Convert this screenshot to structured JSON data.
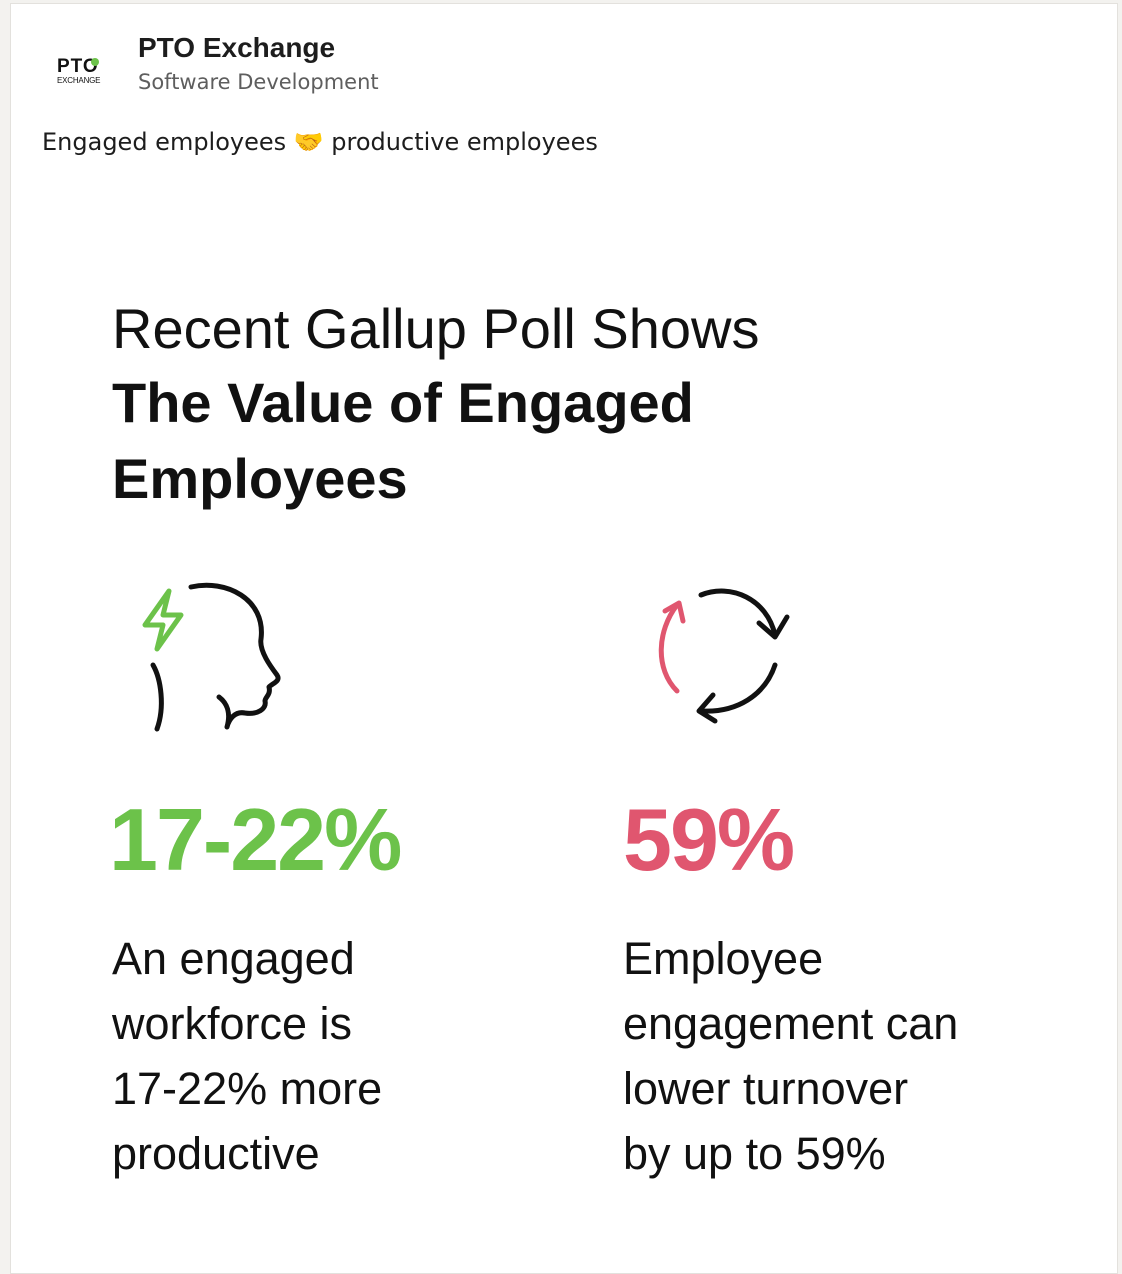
{
  "post": {
    "company_name": "PTO Exchange",
    "company_category": "Software Development",
    "logo": {
      "word": "PTO",
      "sub": "EXCHANGE",
      "accent_color": "#6cc24a"
    },
    "text": "Engaged employees 🤝 productive employees"
  },
  "infographic": {
    "title_line1": "Recent Gallup Poll Shows",
    "title_line2": "The Value of Engaged",
    "title_line3": "Employees",
    "stats": [
      {
        "value": "17-22%",
        "color": "#6cc24a",
        "icon": "head-lightning-icon",
        "description": "An engaged workforce is 17-22% more productive",
        "description_lines": [
          "An engaged",
          "workforce is",
          "17-22% more",
          "productive"
        ]
      },
      {
        "value": "59%",
        "color": "#e0566f",
        "icon": "refresh-cycle-icon",
        "description": "Employee engagement can lower turnover by up to 59%",
        "description_lines": [
          "Employee",
          "engagement can",
          "lower turnover",
          "by up to 59%"
        ]
      }
    ]
  }
}
